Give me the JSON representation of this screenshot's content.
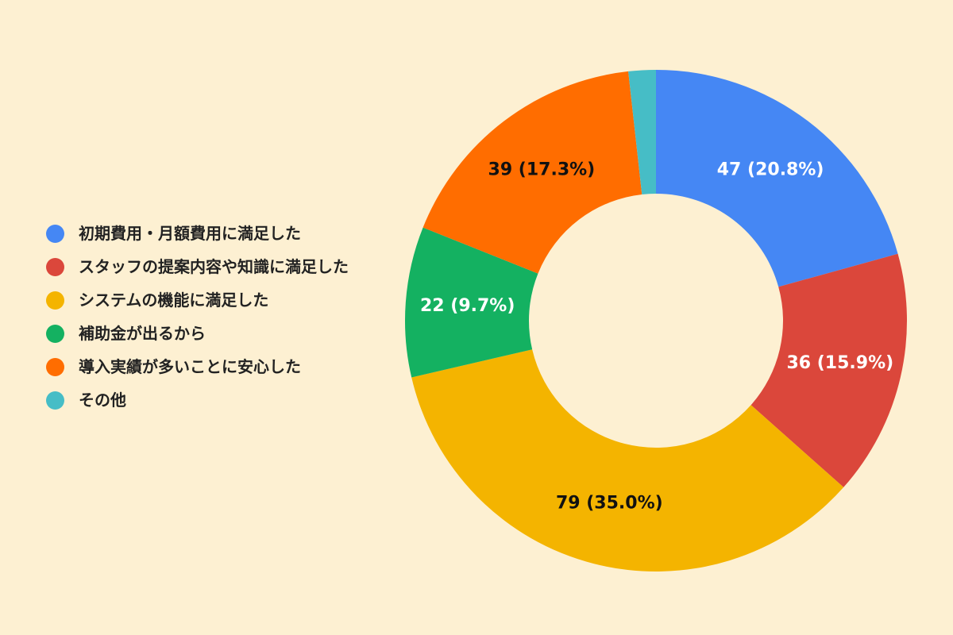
{
  "chart_data": {
    "type": "pie",
    "legend_position": "left",
    "hole": "donut",
    "categories": [
      "初期費用・月額費用に満足した",
      "スタッフの提案内容や知識に満足した",
      "システムの機能に満足した",
      "補助金が出るから",
      "導入実績が多いことに安心した",
      "その他"
    ],
    "values": [
      47,
      36,
      79,
      22,
      39,
      4
    ],
    "labels": [
      "47 (20.8%)",
      "36 (15.9%)",
      "79 (35.0%)",
      "22 (9.7%)",
      "39 (17.3%)",
      ""
    ],
    "colors": [
      "#4587f4",
      "#db473b",
      "#f4b400",
      "#14b161",
      "#ff6d00",
      "#46bdc6"
    ],
    "label_colors": [
      "#ffffff",
      "#ffffff",
      "#111111",
      "#ffffff",
      "#111111",
      "#111111"
    ]
  }
}
